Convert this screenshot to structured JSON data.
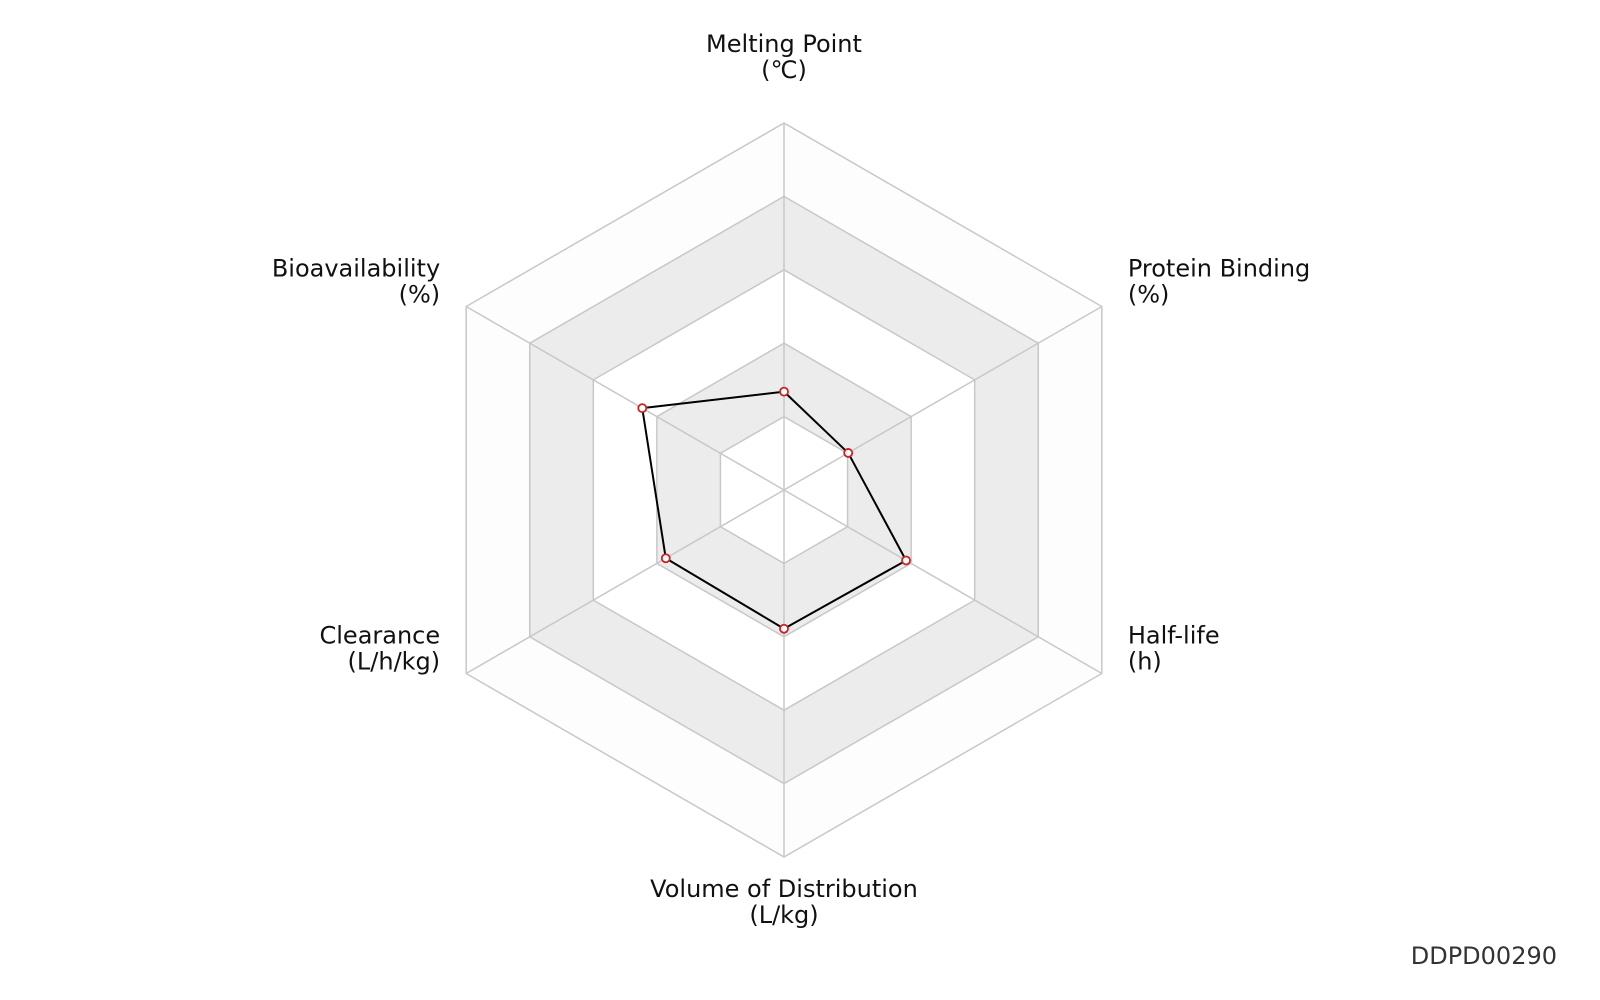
{
  "chart_data": {
    "type": "radar",
    "categories": [
      "Melting Point",
      "Protein Binding",
      "Half-life",
      "Volume of Distribution",
      "Clearance",
      "Bioavailability"
    ],
    "units": [
      "(℃)",
      "(%)",
      "(h)",
      "(L/kg)",
      "(L/h/kg)",
      "(%)"
    ],
    "series": [
      {
        "color": "#000000",
        "marker_color": "#cc2222",
        "values": [
          1.34,
          1.01,
          1.92,
          1.89,
          1.86,
          2.23
        ]
      }
    ],
    "ylim": [
      0,
      5
    ],
    "yticks": [
      1,
      2,
      3,
      4,
      5
    ],
    "grid": true,
    "footnote": "DDPD00290"
  }
}
